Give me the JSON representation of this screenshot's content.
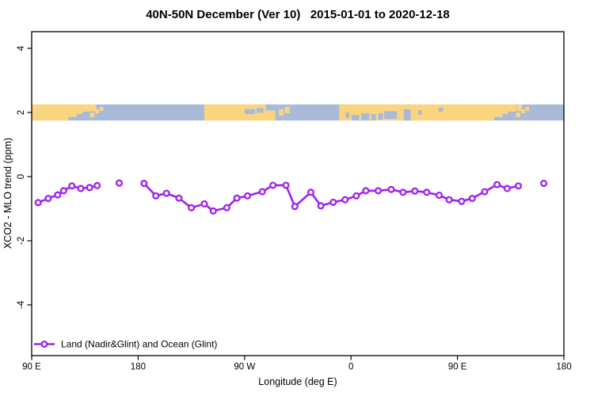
{
  "chart_data": {
    "type": "line",
    "title": "40N-50N December (Ver 10)   2015-01-01 to 2020-12-18",
    "xlabel": "Longitude (deg E)",
    "ylabel": "XCO2 - MLO trend (ppm)",
    "xlim": [
      90,
      540
    ],
    "ylim": [
      -5.6,
      4.5
    ],
    "grid": false,
    "legend_position": "bottom-left-inside",
    "x_ticks": [
      {
        "lon": 90,
        "label": "90 E"
      },
      {
        "lon": 180,
        "label": "180"
      },
      {
        "lon": 270,
        "label": "90 W"
      },
      {
        "lon": 360,
        "label": "0"
      },
      {
        "lon": 450,
        "label": "90 E"
      },
      {
        "lon": 540,
        "label": "180"
      }
    ],
    "y_ticks": [
      {
        "v": 4,
        "label": "4"
      },
      {
        "v": 2,
        "label": "2"
      },
      {
        "v": 0,
        "label": "0"
      },
      {
        "v": -2,
        "label": "-2"
      },
      {
        "v": -4,
        "label": "-4"
      }
    ],
    "series": [
      {
        "name": "Land (Nadir&Glint) and Ocean (Glint)",
        "color": "#A020F0",
        "marker": "open-circle",
        "segments": [
          [
            [
              95.5,
              -0.81
            ],
            [
              104,
              -0.68
            ],
            [
              112,
              -0.57
            ],
            [
              117,
              -0.44
            ],
            [
              124,
              -0.29
            ],
            [
              131.5,
              -0.37
            ],
            [
              139,
              -0.34
            ],
            [
              145.4,
              -0.28
            ]
          ],
          [
            [
              185,
              -0.21
            ],
            [
              195,
              -0.6
            ],
            [
              204,
              -0.52
            ],
            [
              214.5,
              -0.67
            ],
            [
              225,
              -0.97
            ],
            [
              236,
              -0.85
            ],
            [
              243.5,
              -1.07
            ],
            [
              255,
              -0.97
            ],
            [
              263.5,
              -0.67
            ],
            [
              272.5,
              -0.6
            ],
            [
              285,
              -0.47
            ],
            [
              294,
              -0.27
            ],
            [
              305,
              -0.27
            ],
            [
              312.5,
              -0.93
            ],
            [
              326,
              -0.49
            ],
            [
              334.5,
              -0.91
            ],
            [
              345,
              -0.8
            ],
            [
              355,
              -0.72
            ],
            [
              364.5,
              -0.6
            ],
            [
              372.5,
              -0.44
            ],
            [
              383,
              -0.44
            ],
            [
              394,
              -0.4
            ],
            [
              404,
              -0.49
            ],
            [
              414,
              -0.45
            ],
            [
              424,
              -0.49
            ],
            [
              434.5,
              -0.58
            ],
            [
              443,
              -0.72
            ],
            [
              453.5,
              -0.77
            ],
            [
              462.5,
              -0.68
            ],
            [
              473,
              -0.47
            ],
            [
              483.5,
              -0.25
            ],
            [
              492,
              -0.37
            ],
            [
              501.5,
              -0.29
            ]
          ]
        ],
        "isolated_points": [
          [
            164,
            -0.2
          ],
          [
            523,
            -0.21
          ]
        ]
      }
    ],
    "map_band": {
      "description": "world land/ocean strip for 40N-50N drawn across the plot",
      "value_range": [
        1.75,
        2.25
      ],
      "ocean_color": "#A9BAD8",
      "land_color": "#FBD57E",
      "land_patches": [
        [
          90,
          121,
          0,
          1
        ],
        [
          121,
          128,
          0,
          0.78
        ],
        [
          128,
          133,
          0,
          0.6
        ],
        [
          133,
          140,
          0,
          0.45
        ],
        [
          140,
          144.5,
          0,
          0.42
        ],
        [
          139.5,
          143,
          0.5,
          0.8
        ],
        [
          144,
          147,
          0.3,
          0.55
        ],
        [
          147.5,
          150.5,
          0.15,
          0.4
        ],
        [
          236,
          296,
          0,
          1
        ],
        [
          299,
          303,
          0.3,
          0.7
        ],
        [
          304,
          308,
          0.15,
          0.55
        ],
        [
          350,
          481,
          0,
          1
        ],
        [
          481,
          488,
          0,
          0.78
        ],
        [
          488,
          493,
          0,
          0.6
        ],
        [
          493,
          500,
          0,
          0.45
        ],
        [
          500.5,
          504.5,
          0,
          0.42
        ],
        [
          499.5,
          503,
          0.5,
          0.8
        ],
        [
          504,
          507,
          0.3,
          0.55
        ],
        [
          507.5,
          510.5,
          0.15,
          0.4
        ]
      ],
      "ocean_patches": [
        [
          270,
          279,
          0.28,
          0.6
        ],
        [
          280,
          286,
          0.22,
          0.52
        ],
        [
          288,
          296,
          0,
          0.38
        ],
        [
          355.5,
          358.5,
          0.5,
          0.85
        ],
        [
          360.5,
          367,
          0.65,
          1
        ],
        [
          368.5,
          375.5,
          0.55,
          1
        ],
        [
          377,
          381,
          0.6,
          1
        ],
        [
          383,
          387,
          0.55,
          0.95
        ],
        [
          388,
          399,
          0.42,
          0.9
        ],
        [
          404.5,
          410.5,
          0.3,
          1
        ],
        [
          417,
          420,
          0.35,
          0.65
        ],
        [
          434,
          438,
          0.2,
          0.45
        ]
      ]
    }
  }
}
